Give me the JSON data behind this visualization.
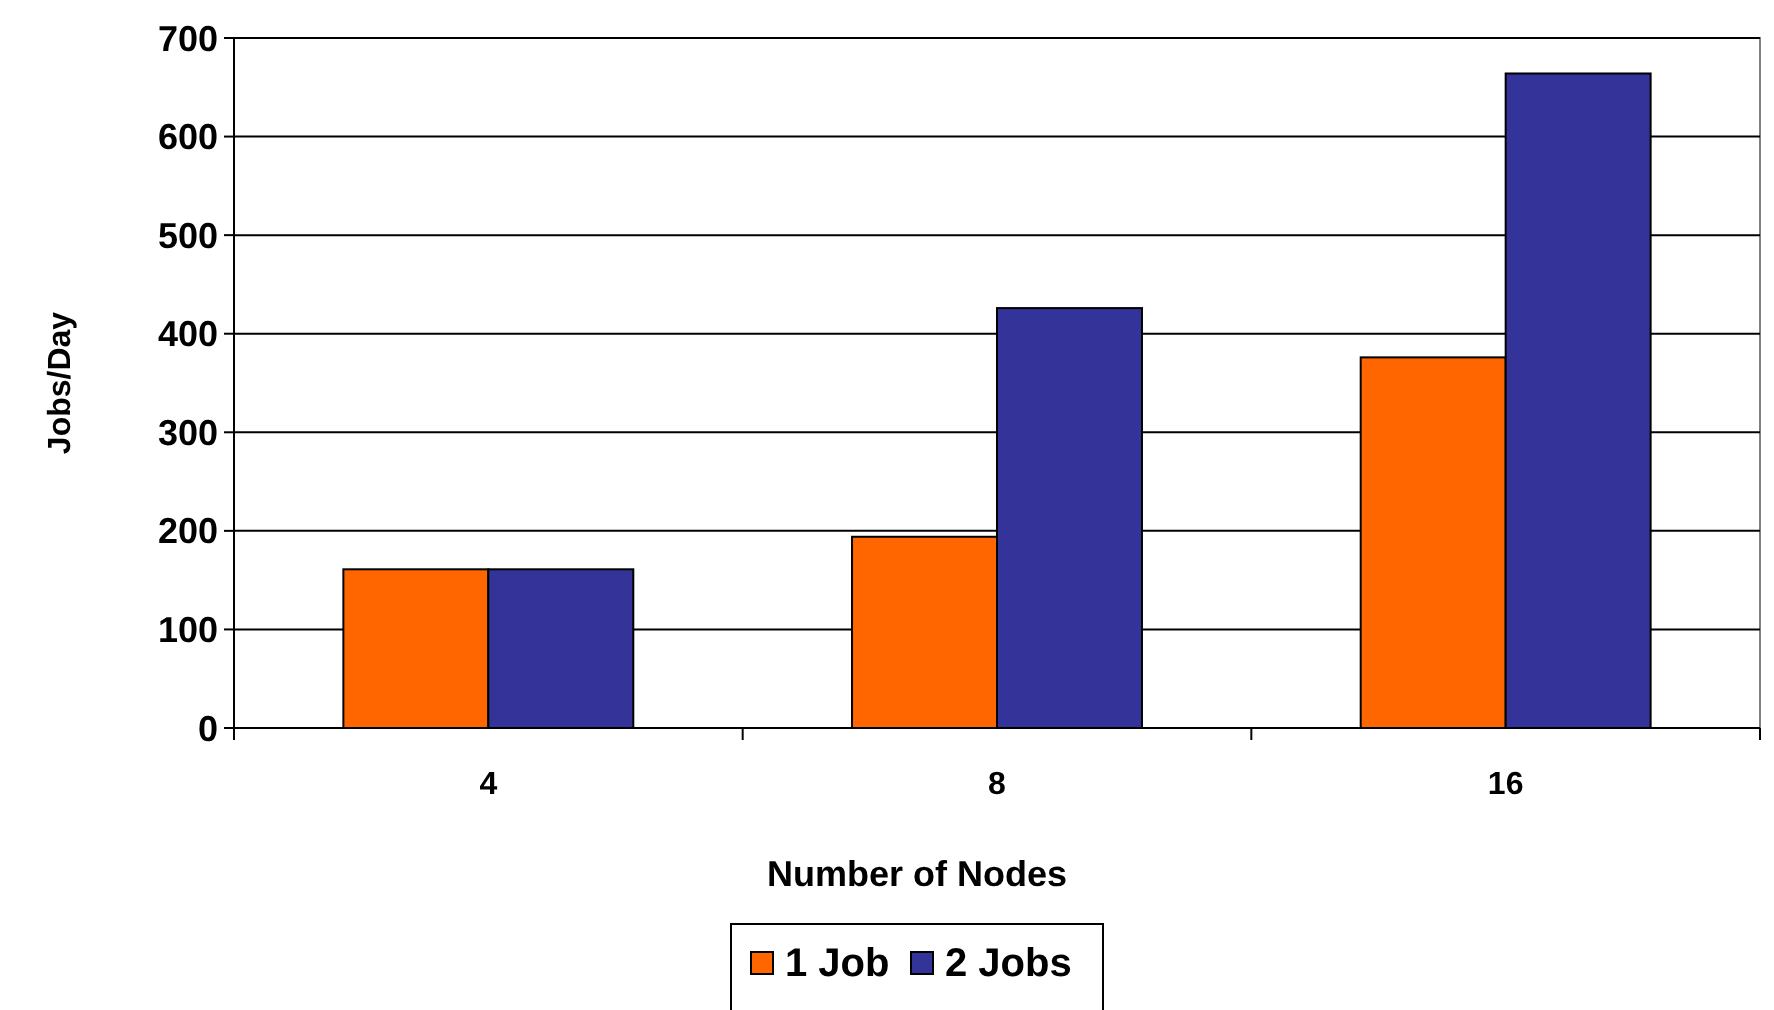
{
  "chart_data": {
    "type": "bar",
    "xlabel": "Number of Nodes",
    "ylabel": "Jobs/Day",
    "categories": [
      "4",
      "8",
      "16"
    ],
    "series": [
      {
        "name": "1 Job",
        "color": "#ff6600",
        "values": [
          161,
          194,
          376
        ]
      },
      {
        "name": "2 Jobs",
        "color": "#333399",
        "values": [
          161,
          426,
          664
        ]
      }
    ],
    "ylim": [
      0,
      700
    ],
    "yticks": [
      0,
      100,
      200,
      300,
      400,
      500,
      600,
      700
    ],
    "grid": "y",
    "legend": "bottom"
  }
}
